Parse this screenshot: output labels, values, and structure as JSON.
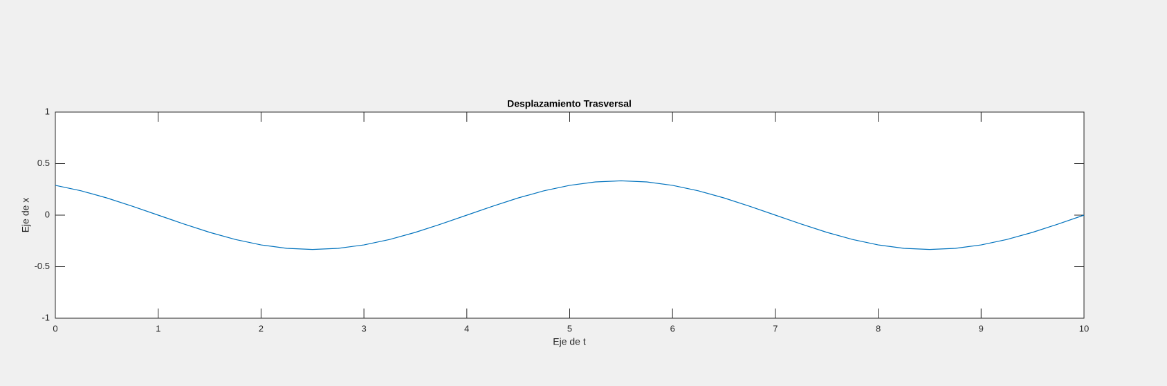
{
  "chart_data": {
    "type": "line",
    "title": "Desplazamiento Trasversal",
    "xlabel": "Eje de t",
    "ylabel": "Eje de x",
    "x": [
      0,
      0.25,
      0.5,
      0.75,
      1,
      1.25,
      1.5,
      1.75,
      2,
      2.25,
      2.5,
      2.75,
      3,
      3.25,
      3.5,
      3.75,
      4,
      4.25,
      4.5,
      4.75,
      5,
      5.25,
      5.5,
      5.75,
      6,
      6.25,
      6.5,
      6.75,
      7,
      7.25,
      7.5,
      7.75,
      8,
      8.25,
      8.5,
      8.75,
      9,
      9.25,
      9.5,
      9.75,
      10
    ],
    "values": [
      0.289,
      0.236,
      0.167,
      0.086,
      0,
      -0.086,
      -0.167,
      -0.236,
      -0.289,
      -0.322,
      -0.333,
      -0.322,
      -0.289,
      -0.236,
      -0.167,
      -0.086,
      0,
      0.086,
      0.167,
      0.236,
      0.289,
      0.322,
      0.333,
      0.322,
      0.289,
      0.236,
      0.167,
      0.086,
      0,
      -0.086,
      -0.167,
      -0.236,
      -0.289,
      -0.322,
      -0.333,
      -0.322,
      -0.289,
      -0.236,
      -0.167,
      -0.086,
      0
    ],
    "color": "#0072bd",
    "xlim": [
      0,
      10
    ],
    "xticks": [
      0,
      1,
      2,
      3,
      4,
      5,
      6,
      7,
      8,
      9,
      10
    ],
    "ylim": [
      -1,
      1
    ],
    "yticks": [
      -1,
      -0.5,
      0,
      0.5,
      1
    ],
    "grid": false
  }
}
